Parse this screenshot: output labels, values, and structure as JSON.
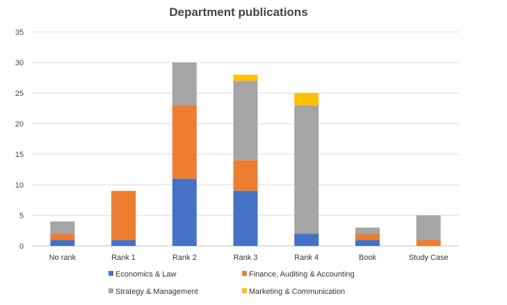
{
  "chart_data": {
    "type": "bar",
    "stacked": true,
    "title": "Department publications",
    "xlabel": "",
    "ylabel": "",
    "ylim": [
      0,
      35
    ],
    "yticks": [
      0,
      5,
      10,
      15,
      20,
      25,
      30,
      35
    ],
    "grid": true,
    "legend_position": "bottom",
    "categories": [
      "No rank",
      "Rank 1",
      "Rank 2",
      "Rank 3",
      "Rank 4",
      "Book",
      "Study Case"
    ],
    "series": [
      {
        "name": "Economics & Law",
        "color": "#4472C4",
        "values": [
          1,
          1,
          11,
          9,
          2,
          1,
          0
        ]
      },
      {
        "name": "Finance, Auditing & Accounting",
        "color": "#ED7D31",
        "values": [
          1,
          8,
          12,
          5,
          0,
          1,
          1
        ]
      },
      {
        "name": "Strategy & Management",
        "color": "#A5A5A5",
        "values": [
          2,
          0,
          7,
          13,
          21,
          1,
          4
        ]
      },
      {
        "name": "Marketing & Communication",
        "color": "#FFC000",
        "values": [
          0,
          0,
          0,
          1,
          2,
          0,
          0
        ]
      }
    ]
  }
}
